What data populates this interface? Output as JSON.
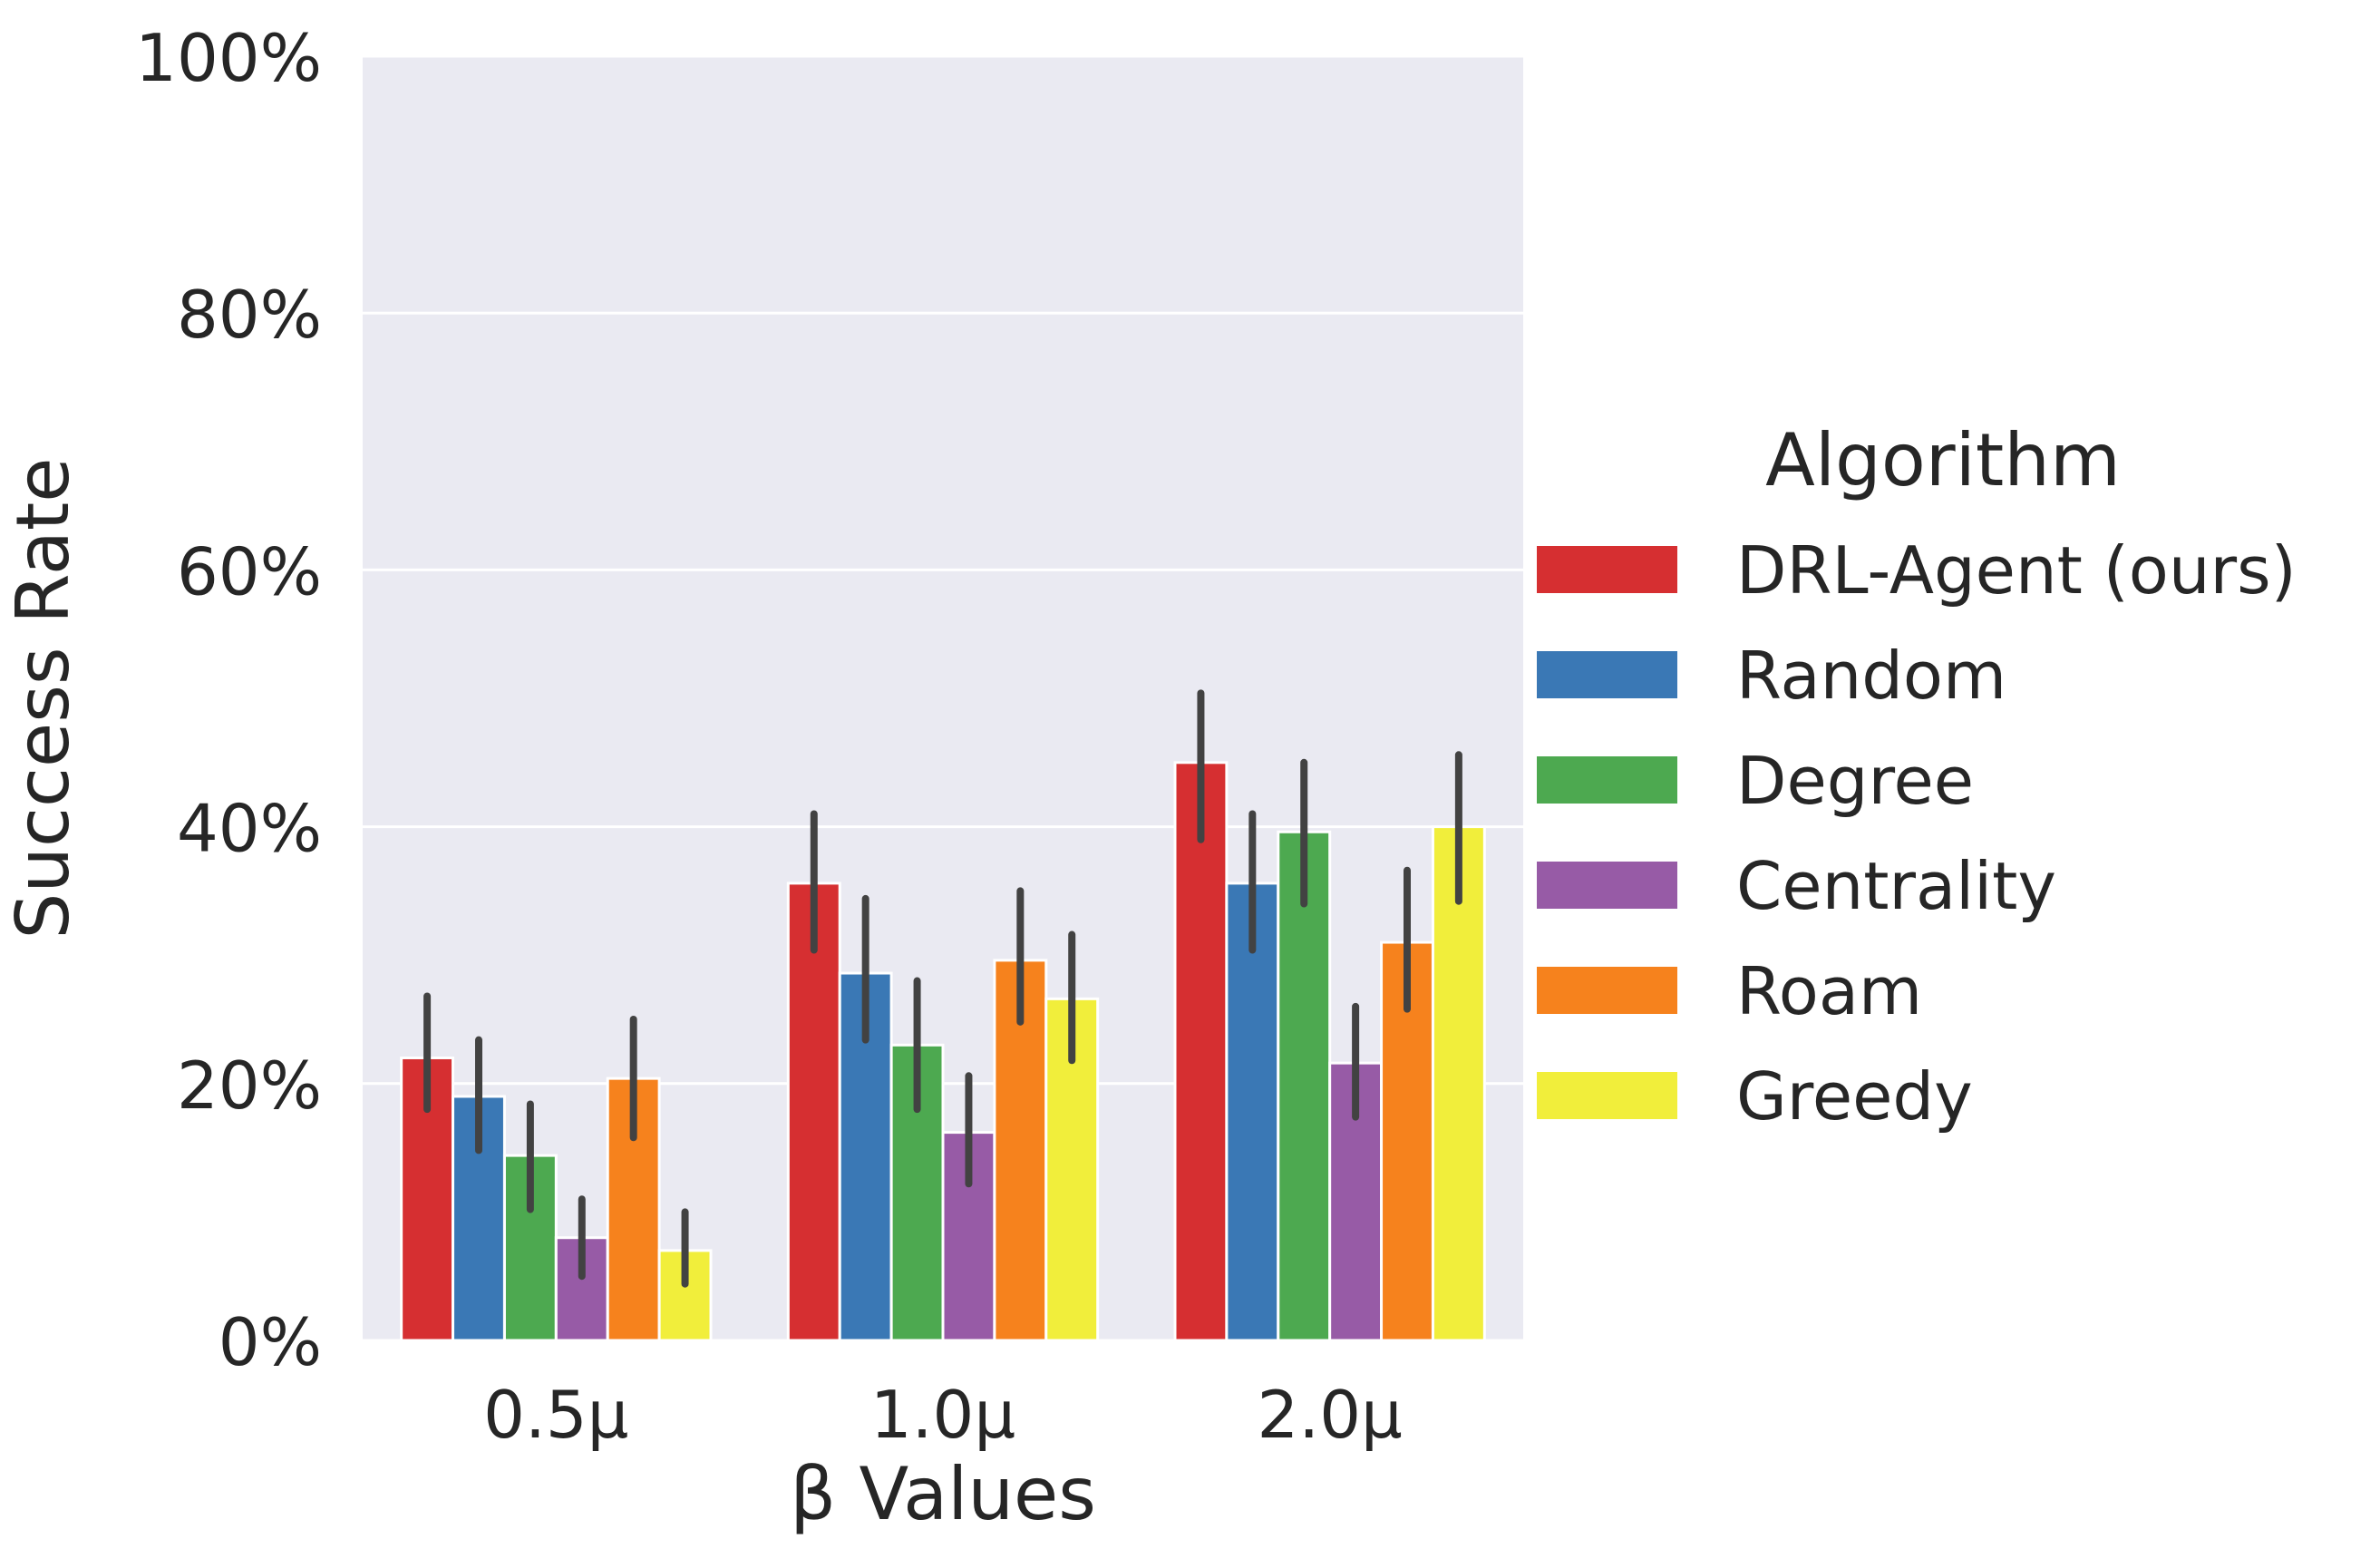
{
  "chart_data": {
    "type": "bar",
    "xlabel": "β Values",
    "ylabel": "Success Rate",
    "categories": [
      "0.5μ",
      "1.0μ",
      "2.0μ"
    ],
    "y_ticks": [
      "0%",
      "20%",
      "40%",
      "60%",
      "80%",
      "100%"
    ],
    "ylim": [
      0,
      100
    ],
    "grid": true,
    "legend": {
      "title": "Algorithm",
      "placement": "right"
    },
    "series": [
      {
        "name": "DRL-Agent (ours)",
        "color": "#d62f31",
        "values": [
          22.0,
          35.6,
          45.0
        ],
        "err_low": [
          18.0,
          30.4,
          39.0
        ],
        "err_high": [
          26.8,
          41.0,
          50.4
        ]
      },
      {
        "name": "Random",
        "color": "#3a78b5",
        "values": [
          19.0,
          28.6,
          35.6
        ],
        "err_low": [
          14.8,
          23.4,
          30.4
        ],
        "err_high": [
          23.4,
          34.4,
          41.0
        ]
      },
      {
        "name": "Degree",
        "color": "#4da950",
        "values": [
          14.4,
          23.0,
          39.6
        ],
        "err_low": [
          10.2,
          18.0,
          34.0
        ],
        "err_high": [
          18.4,
          28.0,
          45.0
        ]
      },
      {
        "name": "Centrality",
        "color": "#975ba6",
        "values": [
          8.0,
          16.2,
          21.6
        ],
        "err_low": [
          5.0,
          12.2,
          17.4
        ],
        "err_high": [
          11.0,
          20.6,
          26.0
        ]
      },
      {
        "name": "Roam",
        "color": "#f6821d",
        "values": [
          20.4,
          29.6,
          31.0
        ],
        "err_low": [
          15.8,
          24.8,
          25.8
        ],
        "err_high": [
          25.0,
          35.0,
          36.6
        ]
      },
      {
        "name": "Greedy",
        "color": "#f1ee3b",
        "values": [
          7.0,
          26.6,
          40.0
        ],
        "err_low": [
          4.4,
          21.8,
          34.2
        ],
        "err_high": [
          10.0,
          31.6,
          45.6
        ]
      }
    ]
  }
}
